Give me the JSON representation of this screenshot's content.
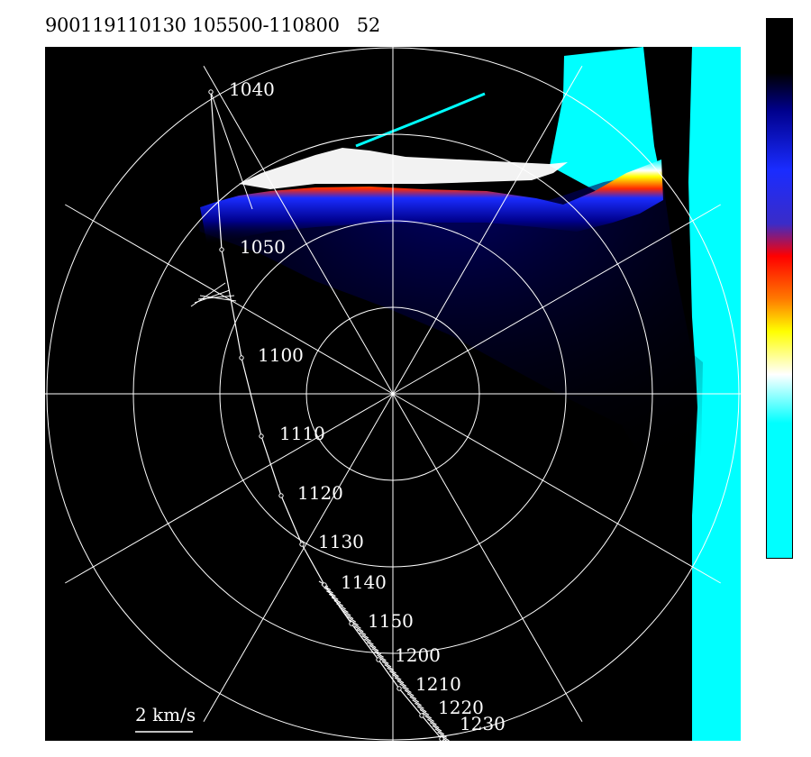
{
  "header": {
    "title": "900119110130 105500-110800   52"
  },
  "chart_data": {
    "type": "heatmap",
    "projection": "polar",
    "range_rings": 4,
    "radial_spokes": 12,
    "grid": true,
    "background": "#000000",
    "scale_label": "2 km/s",
    "track": {
      "times": [
        "1040",
        "1050",
        "1100",
        "1110",
        "1120",
        "1130",
        "1140",
        "1150",
        "1200",
        "1210",
        "1220",
        "1230"
      ]
    },
    "colorbar": {
      "position": "right",
      "stops": [
        "#000000",
        "#00008c",
        "#1a2cff",
        "#ff2a00",
        "#ffa500",
        "#ffff00",
        "#ffffff",
        "#00ffff"
      ]
    },
    "colors": {
      "fill_edge": "#00ffff",
      "grid": "#ffffff",
      "track": "#ffffff"
    }
  }
}
